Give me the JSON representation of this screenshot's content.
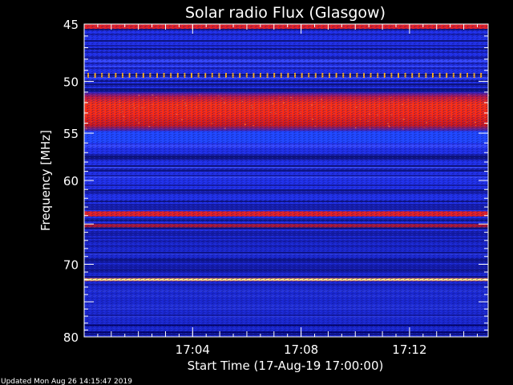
{
  "footer": {
    "updated": "Updated Mon Aug 26 14:15:47 2019"
  },
  "chart_data": {
    "type": "heatmap",
    "title": "Solar radio Flux (Glasgow)",
    "xlabel": "Start Time (17-Aug-19 17:00:00)",
    "ylabel": "Frequency [MHz]",
    "x_ticks": [
      "17:04",
      "17:08",
      "17:12"
    ],
    "x_tick_minutes": [
      4,
      8,
      12
    ],
    "xlim_minutes": [
      0,
      14.9
    ],
    "y_ticks": [
      45,
      50,
      55,
      60,
      70,
      80
    ],
    "ylim": [
      45,
      80
    ],
    "y_scale": "log",
    "grid": false,
    "colors": {
      "background": "#000000",
      "low": "#1a1a9e",
      "mid": "#2a40ff",
      "high": "#e01010",
      "peak": "#ffff80"
    },
    "bands": [
      {
        "from": 45.0,
        "to": 45.4,
        "level": "high"
      },
      {
        "from": 49.3,
        "to": 49.6,
        "level": "spikes"
      },
      {
        "from": 51.0,
        "to": 54.8,
        "level": "high"
      },
      {
        "from": 54.8,
        "to": 56.0,
        "level": "mid"
      },
      {
        "from": 63.5,
        "to": 64.1,
        "level": "high"
      },
      {
        "from": 65.0,
        "to": 65.4,
        "level": "high-faint"
      },
      {
        "from": 71.8,
        "to": 72.2,
        "level": "peak"
      }
    ]
  }
}
